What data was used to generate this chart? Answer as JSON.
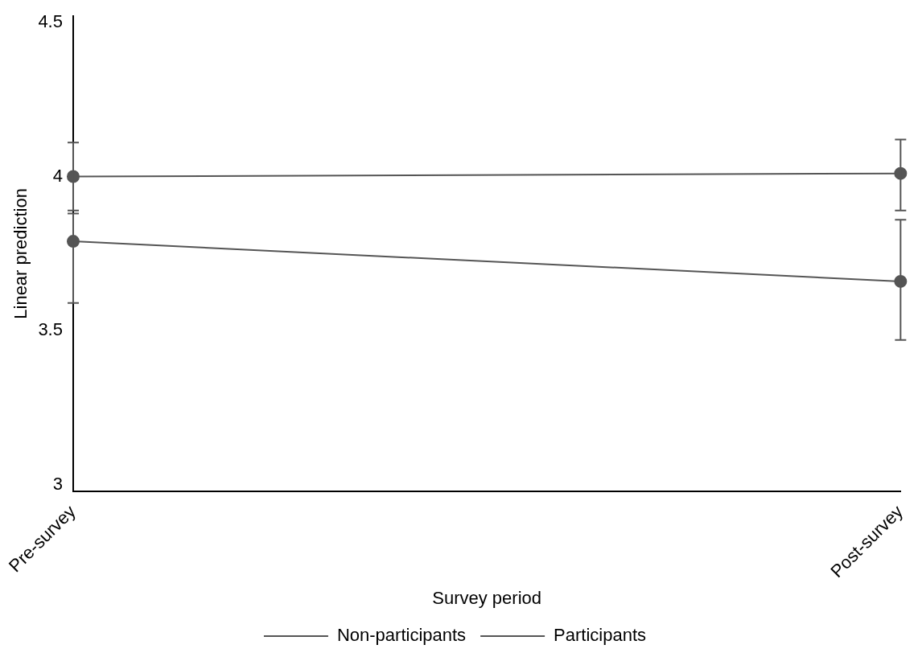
{
  "chart_data": {
    "type": "line",
    "xlabel": "Survey period",
    "ylabel": "Linear prediction",
    "categories": [
      "Pre-survey",
      "Post-survey"
    ],
    "series": [
      {
        "name": "Non-participants",
        "color": "#555555",
        "values": [
          4.0,
          4.01
        ],
        "errors": [
          [
            3.89,
            4.11
          ],
          [
            3.89,
            4.12
          ]
        ]
      },
      {
        "name": "Participants",
        "color": "#555555",
        "values": [
          3.79,
          3.66
        ],
        "errors": [
          [
            3.59,
            3.88
          ],
          [
            3.47,
            3.86
          ]
        ]
      }
    ],
    "ylim": [
      2.98,
      4.52
    ],
    "yticks": [
      3,
      3.5,
      4,
      4.5
    ],
    "grid": false,
    "legend": "bottom",
    "marker": "circle",
    "line_style": "solid"
  }
}
